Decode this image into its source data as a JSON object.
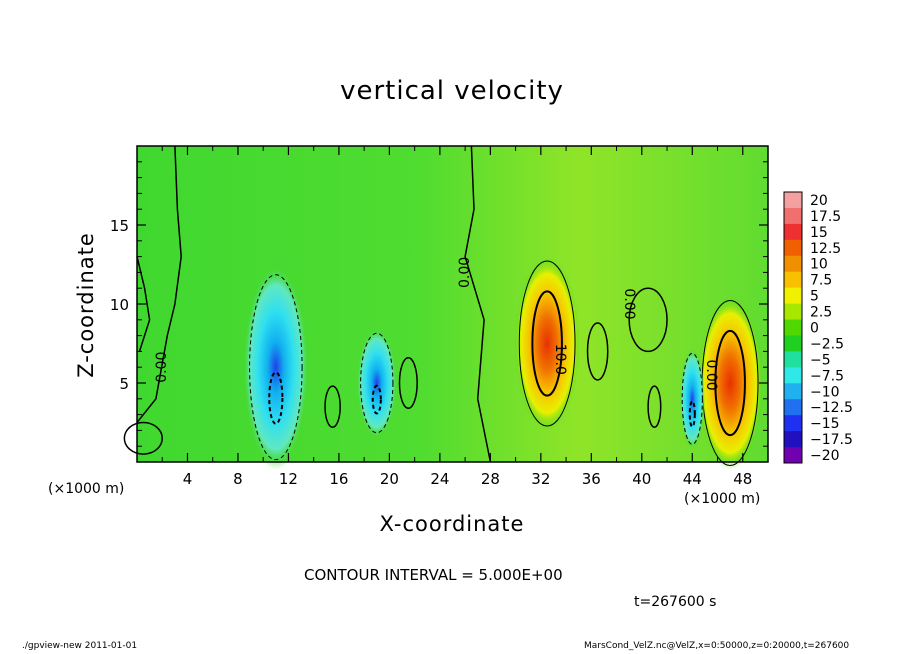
{
  "chart_data": {
    "type": "heatmap",
    "title": "vertical velocity",
    "xlabel": "X-coordinate",
    "ylabel": "Z-coordinate",
    "x_unit": "(×1000 m)",
    "xlim": [
      0,
      50
    ],
    "ylim": [
      0,
      20
    ],
    "x_ticks": [
      4,
      8,
      12,
      16,
      20,
      24,
      28,
      32,
      36,
      40,
      44,
      48
    ],
    "y_ticks": [
      5,
      10,
      15
    ],
    "colorbar": {
      "levels": [
        "20",
        "17.5",
        "15",
        "12.5",
        "10",
        "7.5",
        "5",
        "2.5",
        "0",
        "−2.5",
        "−5",
        "−7.5",
        "−10",
        "−12.5",
        "−15",
        "−17.5",
        "−20"
      ],
      "colors": [
        "#f4a0a0",
        "#f07070",
        "#ee3030",
        "#f06000",
        "#f09000",
        "#f8c000",
        "#f0f000",
        "#a8e800",
        "#50d800",
        "#20d020",
        "#20e0a0",
        "#30e8e8",
        "#20b0f0",
        "#2070f0",
        "#2030f0",
        "#2010c0",
        "#7000b0"
      ]
    },
    "features": [
      {
        "kind": "updraft",
        "x": 32.5,
        "z": 7.5,
        "peak": 15
      },
      {
        "kind": "updraft",
        "x": 47,
        "z": 5,
        "peak": 15
      },
      {
        "kind": "downdraft",
        "x": 11,
        "z": 6,
        "peak": -10
      },
      {
        "kind": "downdraft",
        "x": 19,
        "z": 5,
        "peak": -12.5
      },
      {
        "kind": "downdraft",
        "x": 44,
        "z": 4,
        "peak": -12.5
      }
    ],
    "contour_labels": [
      {
        "text": "0.00",
        "x": 2,
        "z": 6,
        "rotate": -90
      },
      {
        "text": "0.00",
        "x": 26,
        "z": 12,
        "rotate": -90
      },
      {
        "text": "0.00",
        "x": 39,
        "z": 10,
        "rotate": 90
      },
      {
        "text": "10.0",
        "x": 33.5,
        "z": 6.5,
        "rotate": 90
      },
      {
        "text": "0.00",
        "x": 45.5,
        "z": 5.5,
        "rotate": 90
      }
    ]
  },
  "text": {
    "contour_interval": "CONTOUR INTERVAL = 5.000E+00",
    "time": "t=267600 s",
    "footer_left": "./gpview-new   2011-01-01",
    "footer_right": "MarsCond_VelZ.nc@VelZ,x=0:50000,z=0:20000,t=267600"
  }
}
